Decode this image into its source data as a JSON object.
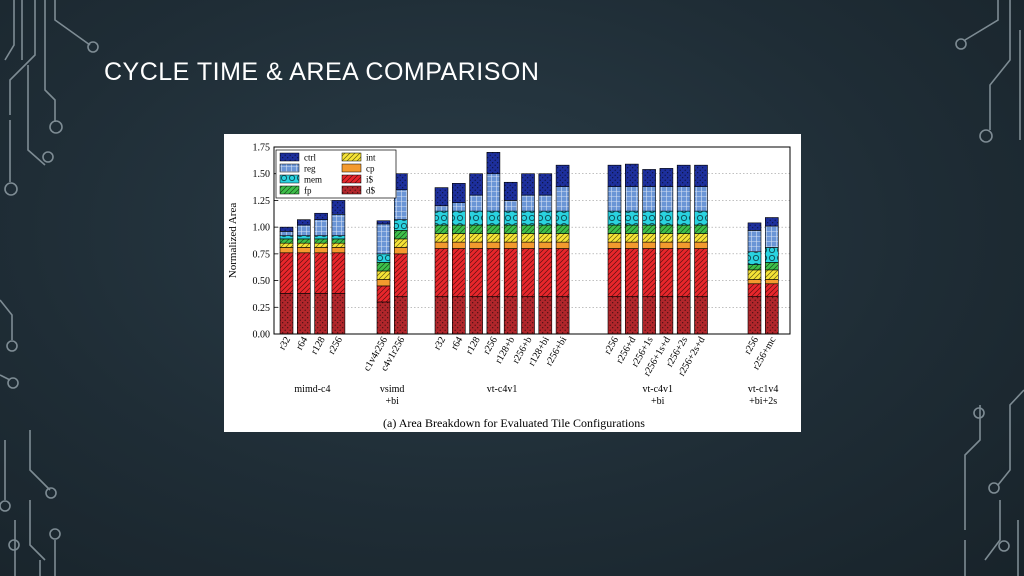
{
  "slide": {
    "title": "CYCLE TIME & AREA COMPARISON"
  },
  "colors": {
    "background": "#1f2d36",
    "circuit_line": "#8f9da5",
    "title": "#ffffff"
  },
  "chart_data": {
    "type": "bar",
    "stacked": true,
    "title": "(a) Area Breakdown for Evaluated Tile Configurations",
    "ylabel": "Normalized Area",
    "xlabel": "",
    "ylim": [
      0,
      1.75
    ],
    "yticks": [
      "0.00",
      "0.25",
      "0.50",
      "0.75",
      "1.00",
      "1.25",
      "1.50",
      "1.75"
    ],
    "grid": true,
    "legend_position": "top-left",
    "groups": [
      {
        "label_lines": [
          "mimd-c4"
        ],
        "bars": [
          {
            "label": "r32",
            "values": {
              "d$": 0.38,
              "i$": 0.38,
              "cp": 0.05,
              "int": 0.04,
              "fp": 0.04,
              "mem": 0.03,
              "reg": 0.04,
              "ctrl": 0.04
            }
          },
          {
            "label": "r64",
            "values": {
              "d$": 0.38,
              "i$": 0.38,
              "cp": 0.05,
              "int": 0.04,
              "fp": 0.04,
              "mem": 0.03,
              "reg": 0.1,
              "ctrl": 0.05
            }
          },
          {
            "label": "r128",
            "values": {
              "d$": 0.38,
              "i$": 0.38,
              "cp": 0.05,
              "int": 0.04,
              "fp": 0.04,
              "mem": 0.03,
              "reg": 0.15,
              "ctrl": 0.06
            }
          },
          {
            "label": "r256",
            "values": {
              "d$": 0.38,
              "i$": 0.38,
              "cp": 0.05,
              "int": 0.04,
              "fp": 0.04,
              "mem": 0.03,
              "reg": 0.2,
              "ctrl": 0.13
            }
          }
        ]
      },
      {
        "label_lines": [
          "vsimd",
          "+bi"
        ],
        "bars": [
          {
            "label": "c1v4r256",
            "values": {
              "d$": 0.3,
              "i$": 0.15,
              "cp": 0.06,
              "int": 0.08,
              "fp": 0.08,
              "mem": 0.08,
              "reg": 0.28,
              "ctrl": 0.03
            }
          },
          {
            "label": "c4v1r256",
            "values": {
              "d$": 0.35,
              "i$": 0.4,
              "cp": 0.06,
              "int": 0.08,
              "fp": 0.08,
              "mem": 0.1,
              "reg": 0.28,
              "ctrl": 0.15
            }
          }
        ]
      },
      {
        "label_lines": [
          "vt-c4v1"
        ],
        "bars": [
          {
            "label": "r32",
            "values": {
              "d$": 0.35,
              "i$": 0.45,
              "cp": 0.06,
              "int": 0.08,
              "fp": 0.08,
              "mem": 0.13,
              "reg": 0.05,
              "ctrl": 0.17
            }
          },
          {
            "label": "r64",
            "values": {
              "d$": 0.35,
              "i$": 0.45,
              "cp": 0.06,
              "int": 0.08,
              "fp": 0.08,
              "mem": 0.13,
              "reg": 0.08,
              "ctrl": 0.18
            }
          },
          {
            "label": "r128",
            "values": {
              "d$": 0.35,
              "i$": 0.45,
              "cp": 0.06,
              "int": 0.08,
              "fp": 0.08,
              "mem": 0.13,
              "reg": 0.15,
              "ctrl": 0.2
            }
          },
          {
            "label": "r256",
            "values": {
              "d$": 0.35,
              "i$": 0.45,
              "cp": 0.06,
              "int": 0.08,
              "fp": 0.08,
              "mem": 0.13,
              "reg": 0.35,
              "ctrl": 0.2
            }
          },
          {
            "label": "r128+b",
            "values": {
              "d$": 0.35,
              "i$": 0.45,
              "cp": 0.06,
              "int": 0.08,
              "fp": 0.08,
              "mem": 0.13,
              "reg": 0.1,
              "ctrl": 0.17
            }
          },
          {
            "label": "r256+b",
            "values": {
              "d$": 0.35,
              "i$": 0.45,
              "cp": 0.06,
              "int": 0.08,
              "fp": 0.08,
              "mem": 0.13,
              "reg": 0.15,
              "ctrl": 0.2
            }
          },
          {
            "label": "r128+bi",
            "values": {
              "d$": 0.35,
              "i$": 0.45,
              "cp": 0.06,
              "int": 0.08,
              "fp": 0.08,
              "mem": 0.13,
              "reg": 0.15,
              "ctrl": 0.2
            }
          },
          {
            "label": "r256+bi",
            "values": {
              "d$": 0.35,
              "i$": 0.45,
              "cp": 0.06,
              "int": 0.08,
              "fp": 0.08,
              "mem": 0.13,
              "reg": 0.23,
              "ctrl": 0.2
            }
          }
        ]
      },
      {
        "label_lines": [
          "vt-c4v1",
          "+bi"
        ],
        "bars": [
          {
            "label": "r256",
            "values": {
              "d$": 0.35,
              "i$": 0.45,
              "cp": 0.06,
              "int": 0.08,
              "fp": 0.08,
              "mem": 0.13,
              "reg": 0.23,
              "ctrl": 0.2
            }
          },
          {
            "label": "r256+d",
            "values": {
              "d$": 0.35,
              "i$": 0.45,
              "cp": 0.06,
              "int": 0.08,
              "fp": 0.08,
              "mem": 0.13,
              "reg": 0.23,
              "ctrl": 0.21
            }
          },
          {
            "label": "r256+1s",
            "values": {
              "d$": 0.35,
              "i$": 0.45,
              "cp": 0.06,
              "int": 0.08,
              "fp": 0.08,
              "mem": 0.13,
              "reg": 0.23,
              "ctrl": 0.16
            }
          },
          {
            "label": "r256+1s+d",
            "values": {
              "d$": 0.35,
              "i$": 0.45,
              "cp": 0.06,
              "int": 0.08,
              "fp": 0.08,
              "mem": 0.13,
              "reg": 0.23,
              "ctrl": 0.17
            }
          },
          {
            "label": "r256+2s",
            "values": {
              "d$": 0.35,
              "i$": 0.45,
              "cp": 0.06,
              "int": 0.08,
              "fp": 0.08,
              "mem": 0.13,
              "reg": 0.23,
              "ctrl": 0.2
            }
          },
          {
            "label": "r256+2s+d",
            "values": {
              "d$": 0.35,
              "i$": 0.45,
              "cp": 0.06,
              "int": 0.08,
              "fp": 0.08,
              "mem": 0.13,
              "reg": 0.23,
              "ctrl": 0.2
            }
          }
        ]
      },
      {
        "label_lines": [
          "vt-c1v4",
          "+bi+2s"
        ],
        "bars": [
          {
            "label": "r256",
            "values": {
              "d$": 0.35,
              "i$": 0.12,
              "cp": 0.04,
              "int": 0.09,
              "fp": 0.05,
              "mem": 0.12,
              "reg": 0.2,
              "ctrl": 0.07
            }
          },
          {
            "label": "r256+mc",
            "values": {
              "d$": 0.35,
              "i$": 0.12,
              "cp": 0.04,
              "int": 0.09,
              "fp": 0.07,
              "mem": 0.14,
              "reg": 0.2,
              "ctrl": 0.08
            }
          }
        ]
      }
    ],
    "series": [
      {
        "key": "d$",
        "name": "d$",
        "color": "#b0262b",
        "pattern": "dots"
      },
      {
        "key": "i$",
        "name": "i$",
        "color": "#e8262b",
        "pattern": "hatch"
      },
      {
        "key": "cp",
        "name": "cp",
        "color": "#f39a2e",
        "pattern": "none"
      },
      {
        "key": "int",
        "name": "int",
        "color": "#f6e336",
        "pattern": "hatch"
      },
      {
        "key": "fp",
        "name": "fp",
        "color": "#3ec04a",
        "pattern": "hatch"
      },
      {
        "key": "mem",
        "name": "mem",
        "color": "#2ad3e0",
        "pattern": "circles"
      },
      {
        "key": "reg",
        "name": "reg",
        "color": "#6a95d6",
        "pattern": "grid"
      },
      {
        "key": "ctrl",
        "name": "ctrl",
        "color": "#1d2f9c",
        "pattern": "dots"
      }
    ],
    "legend": {
      "col1": [
        "ctrl",
        "reg",
        "mem",
        "fp"
      ],
      "col2": [
        "int",
        "cp",
        "i$",
        "d$"
      ]
    }
  }
}
